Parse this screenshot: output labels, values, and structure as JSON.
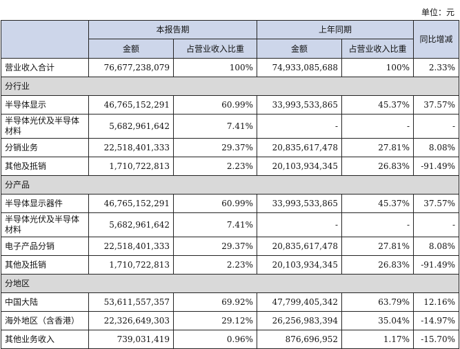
{
  "unit_label": "单位：元",
  "headers": {
    "item": "",
    "current_period": "本报告期",
    "prior_period": "上年同期",
    "yoy": "同比增减",
    "amount": "金额",
    "share": "占营业收入比重"
  },
  "total": {
    "label": "营业收入合计",
    "cur_amount": "76,677,238,079",
    "cur_share": "100%",
    "prev_amount": "74,933,085,688",
    "prev_share": "100%",
    "yoy": "2.33%"
  },
  "sections": [
    {
      "title": "分行业",
      "rows": [
        {
          "label": "半导体显示",
          "cur_amount": "46,765,152,291",
          "cur_share": "60.99%",
          "prev_amount": "33,993,533,865",
          "prev_share": "45.37%",
          "yoy": "37.57%"
        },
        {
          "label": "半导体光伏及半导体材料",
          "cur_amount": "5,682,961,642",
          "cur_share": "7.41%",
          "prev_amount": "-",
          "prev_share": "-",
          "yoy": "-"
        },
        {
          "label": "分销业务",
          "cur_amount": "22,518,401,333",
          "cur_share": "29.37%",
          "prev_amount": "20,835,617,478",
          "prev_share": "27.81%",
          "yoy": "8.08%"
        },
        {
          "label": "其他及抵销",
          "cur_amount": "1,710,722,813",
          "cur_share": "2.23%",
          "prev_amount": "20,103,934,345",
          "prev_share": "26.83%",
          "yoy": "-91.49%"
        }
      ]
    },
    {
      "title": "分产品",
      "rows": [
        {
          "label": "半导体显示器件",
          "cur_amount": "46,765,152,291",
          "cur_share": "60.99%",
          "prev_amount": "33,993,533,865",
          "prev_share": "45.37%",
          "yoy": "37.57%"
        },
        {
          "label": "半导体光伏及半导体材料",
          "cur_amount": "5,682,961,642",
          "cur_share": "7.41%",
          "prev_amount": "-",
          "prev_share": "-",
          "yoy": "-"
        },
        {
          "label": "电子产品分销",
          "cur_amount": "22,518,401,333",
          "cur_share": "29.37%",
          "prev_amount": "20,835,617,478",
          "prev_share": "27.81%",
          "yoy": "8.08%"
        },
        {
          "label": "其他及抵销",
          "cur_amount": "1,710,722,813",
          "cur_share": "2.23%",
          "prev_amount": "20,103,934,345",
          "prev_share": "26.83%",
          "yoy": "-91.49%"
        }
      ]
    },
    {
      "title": "分地区",
      "rows": [
        {
          "label": "中国大陆",
          "cur_amount": "53,611,557,357",
          "cur_share": "69.92%",
          "prev_amount": "47,799,405,342",
          "prev_share": "63.79%",
          "yoy": "12.16%"
        },
        {
          "label": "海外地区（含香港）",
          "cur_amount": "22,326,649,303",
          "cur_share": "29.12%",
          "prev_amount": "26,256,983,394",
          "prev_share": "35.04%",
          "yoy": "-14.97%"
        },
        {
          "label": "其他业务收入",
          "cur_amount": "739,031,419",
          "cur_share": "0.96%",
          "prev_amount": "876,696,952",
          "prev_share": "1.17%",
          "yoy": "-15.70%"
        }
      ]
    }
  ]
}
